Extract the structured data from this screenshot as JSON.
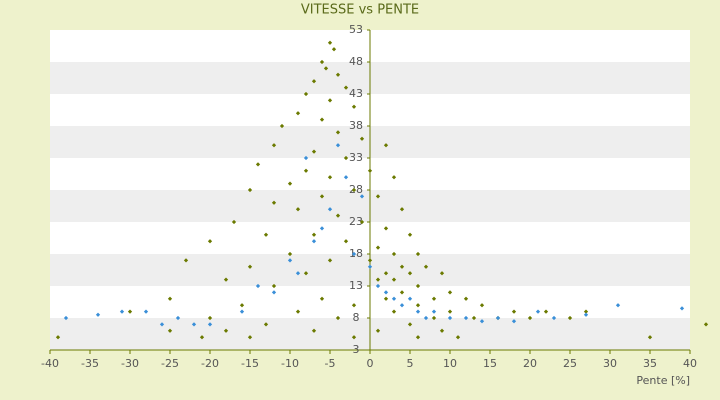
{
  "chart_data": {
    "type": "scatter",
    "title": "VITESSE vs PENTE",
    "x_label": "Pente [%]",
    "xlim": [
      -40,
      40
    ],
    "xticks": [
      -40,
      -35,
      -30,
      -25,
      -20,
      -15,
      -10,
      -5,
      0,
      5,
      10,
      15,
      20,
      25,
      30,
      35,
      40
    ],
    "ylim": [
      3,
      53
    ],
    "yticks": [
      3,
      8,
      13,
      18,
      23,
      28,
      33,
      38,
      43,
      48,
      53
    ],
    "grid": true,
    "band_colors": [
      "#ffffff",
      "#eeeeee"
    ],
    "series": [
      {
        "color": "#6b7a00",
        "x": [
          -5,
          -4.5,
          -6,
          -5.5,
          -4,
          -7,
          -3,
          -8,
          -5,
          -2,
          -9,
          -6,
          -11,
          -4,
          -1,
          -12,
          -7,
          2,
          -3,
          -14,
          -8,
          0,
          -5,
          -10,
          3,
          -15,
          -2,
          -6,
          1,
          -12,
          -9,
          4,
          -4,
          -17,
          -1,
          2,
          -13,
          -7,
          5,
          -20,
          -3,
          1,
          -10,
          3,
          6,
          -23,
          -5,
          0,
          4,
          -15,
          7,
          2,
          -8,
          5,
          9,
          -18,
          1,
          3,
          6,
          -12,
          10,
          4,
          -25,
          -6,
          8,
          12,
          2,
          -2,
          14,
          6,
          -16,
          -30,
          10,
          18,
          -9,
          3,
          22,
          -20,
          8,
          13,
          -4,
          16,
          25,
          -13,
          5,
          20,
          -25,
          -18,
          -7,
          1,
          9,
          -39,
          -15,
          -2,
          11,
          35,
          42,
          27,
          -21,
          6
        ],
        "values": [
          51,
          50,
          48,
          47,
          46,
          45,
          44,
          43,
          42,
          41,
          40,
          39,
          38,
          37,
          36,
          35,
          34,
          35,
          33,
          32,
          31,
          31,
          30,
          29,
          30,
          28,
          28,
          27,
          27,
          26,
          25,
          25,
          24,
          23,
          23,
          22,
          21,
          21,
          21,
          20,
          20,
          19,
          18,
          18,
          18,
          17,
          17,
          17,
          16,
          16,
          16,
          15,
          15,
          15,
          15,
          14,
          14,
          14,
          13,
          13,
          12,
          12,
          11,
          11,
          11,
          11,
          11,
          10,
          10,
          10,
          10,
          9,
          9,
          9,
          9,
          9,
          9,
          8,
          8,
          8,
          8,
          8,
          8,
          7,
          7,
          8,
          6,
          6,
          6,
          6,
          6,
          5,
          5,
          5,
          5,
          5,
          7,
          9,
          5,
          5
        ]
      },
      {
        "color": "#3a8fd8",
        "x": [
          -38,
          -34,
          -31,
          -28,
          -24,
          -20,
          -16,
          -12,
          -9,
          -7,
          -5,
          -3,
          -4,
          -6,
          -2,
          0,
          1,
          2,
          3,
          4,
          5,
          6,
          7,
          8,
          10,
          12,
          14,
          16,
          18,
          21,
          23,
          27,
          31,
          39,
          -1,
          -8,
          -10,
          -14,
          -22,
          -26
        ],
        "values": [
          8,
          8.5,
          9,
          9,
          8,
          7,
          9,
          12,
          15,
          20,
          25,
          30,
          35,
          22,
          18,
          16,
          13,
          12,
          11,
          10,
          11,
          9,
          8,
          9,
          8,
          8,
          7.5,
          8,
          7.5,
          9,
          8,
          8.5,
          10,
          9.5,
          27,
          33,
          17,
          13,
          7,
          7
        ]
      }
    ]
  }
}
